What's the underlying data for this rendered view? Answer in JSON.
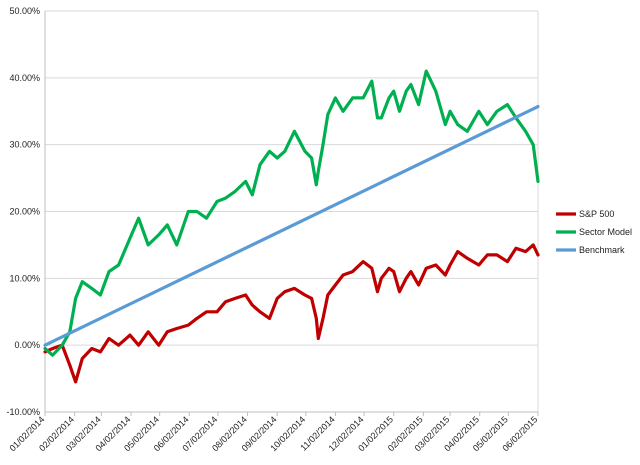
{
  "chart_data": {
    "type": "line",
    "title": "",
    "xlabel": "",
    "ylabel": "",
    "ylim": [
      -0.1,
      0.5
    ],
    "y_ticks": [
      -0.1,
      0.0,
      0.1,
      0.2,
      0.3,
      0.4,
      0.5
    ],
    "y_tick_labels": [
      "-10.00%",
      "0.00%",
      "10.00%",
      "20.00%",
      "30.00%",
      "40.00%",
      "50.00%"
    ],
    "x_tick_labels": [
      "01/02/2014",
      "02/02/2014",
      "03/02/2014",
      "04/02/2014",
      "05/02/2014",
      "06/02/2014",
      "07/02/2014",
      "08/02/2014",
      "09/02/2014",
      "10/02/2014",
      "11/02/2014",
      "12/02/2014",
      "01/02/2015",
      "02/02/2015",
      "03/02/2015",
      "04/02/2015",
      "05/02/2015",
      "06/02/2015"
    ],
    "x_ticks": [
      "2014-01-02",
      "2014-02-02",
      "2014-03-02",
      "2014-04-02",
      "2014-05-02",
      "2014-06-02",
      "2014-07-02",
      "2014-08-02",
      "2014-09-02",
      "2014-10-02",
      "2014-11-02",
      "2014-12-02",
      "2015-01-02",
      "2015-02-02",
      "2015-03-02",
      "2015-04-02",
      "2015-05-02",
      "2015-06-02"
    ],
    "xlim": [
      "2014-01-02",
      "2015-06-02"
    ],
    "grid": "horizontal",
    "legend_position": "right",
    "series": [
      {
        "name": "S&P 500",
        "color": "#c00000",
        "x": [
          "2014-01-02",
          "2014-01-10",
          "2014-01-20",
          "2014-01-28",
          "2014-02-03",
          "2014-02-10",
          "2014-02-20",
          "2014-03-01",
          "2014-03-10",
          "2014-03-20",
          "2014-04-01",
          "2014-04-10",
          "2014-04-20",
          "2014-05-01",
          "2014-05-10",
          "2014-05-20",
          "2014-06-01",
          "2014-06-10",
          "2014-06-20",
          "2014-07-01",
          "2014-07-10",
          "2014-07-20",
          "2014-07-31",
          "2014-08-07",
          "2014-08-15",
          "2014-08-25",
          "2014-09-02",
          "2014-09-10",
          "2014-09-20",
          "2014-10-01",
          "2014-10-08",
          "2014-10-13",
          "2014-10-15",
          "2014-10-20",
          "2014-10-25",
          "2014-11-02",
          "2014-11-10",
          "2014-11-20",
          "2014-12-01",
          "2014-12-10",
          "2014-12-16",
          "2014-12-20",
          "2014-12-28",
          "2015-01-02",
          "2015-01-08",
          "2015-01-15",
          "2015-01-20",
          "2015-01-28",
          "2015-02-05",
          "2015-02-15",
          "2015-02-25",
          "2015-03-02",
          "2015-03-10",
          "2015-03-20",
          "2015-04-01",
          "2015-04-10",
          "2015-04-20",
          "2015-05-01",
          "2015-05-10",
          "2015-05-20",
          "2015-05-28",
          "2015-06-02"
        ],
        "values": [
          -0.01,
          -0.005,
          0.0,
          -0.03,
          -0.055,
          -0.02,
          -0.005,
          -0.01,
          0.01,
          0.0,
          0.015,
          0.0,
          0.02,
          0.0,
          0.02,
          0.025,
          0.03,
          0.04,
          0.05,
          0.05,
          0.065,
          0.07,
          0.075,
          0.06,
          0.05,
          0.04,
          0.07,
          0.08,
          0.085,
          0.075,
          0.07,
          0.04,
          0.01,
          0.04,
          0.075,
          0.09,
          0.105,
          0.11,
          0.125,
          0.115,
          0.08,
          0.1,
          0.115,
          0.11,
          0.08,
          0.1,
          0.11,
          0.09,
          0.115,
          0.12,
          0.105,
          0.12,
          0.14,
          0.13,
          0.12,
          0.135,
          0.135,
          0.125,
          0.145,
          0.14,
          0.15,
          0.135
        ]
      },
      {
        "name": "Sector Model",
        "color": "#00b050",
        "x": [
          "2014-01-02",
          "2014-01-10",
          "2014-01-20",
          "2014-01-28",
          "2014-02-03",
          "2014-02-10",
          "2014-02-20",
          "2014-03-01",
          "2014-03-10",
          "2014-03-20",
          "2014-04-01",
          "2014-04-10",
          "2014-04-20",
          "2014-05-01",
          "2014-05-10",
          "2014-05-20",
          "2014-06-01",
          "2014-06-10",
          "2014-06-20",
          "2014-07-01",
          "2014-07-10",
          "2014-07-20",
          "2014-07-31",
          "2014-08-07",
          "2014-08-15",
          "2014-08-25",
          "2014-09-02",
          "2014-09-10",
          "2014-09-20",
          "2014-10-01",
          "2014-10-08",
          "2014-10-13",
          "2014-10-15",
          "2014-10-20",
          "2014-10-25",
          "2014-11-02",
          "2014-11-10",
          "2014-11-20",
          "2014-12-01",
          "2014-12-10",
          "2014-12-16",
          "2014-12-20",
          "2014-12-28",
          "2015-01-02",
          "2015-01-08",
          "2015-01-15",
          "2015-01-20",
          "2015-01-28",
          "2015-02-05",
          "2015-02-15",
          "2015-02-25",
          "2015-03-02",
          "2015-03-10",
          "2015-03-20",
          "2015-04-01",
          "2015-04-10",
          "2015-04-20",
          "2015-05-01",
          "2015-05-10",
          "2015-05-20",
          "2015-05-28",
          "2015-06-02"
        ],
        "values": [
          -0.005,
          -0.015,
          0.0,
          0.02,
          0.07,
          0.095,
          0.085,
          0.075,
          0.11,
          0.12,
          0.16,
          0.19,
          0.15,
          0.165,
          0.18,
          0.15,
          0.2,
          0.2,
          0.19,
          0.215,
          0.22,
          0.23,
          0.245,
          0.225,
          0.27,
          0.29,
          0.28,
          0.29,
          0.32,
          0.29,
          0.28,
          0.24,
          0.26,
          0.3,
          0.345,
          0.37,
          0.35,
          0.37,
          0.37,
          0.395,
          0.34,
          0.34,
          0.37,
          0.38,
          0.35,
          0.38,
          0.39,
          0.36,
          0.41,
          0.38,
          0.33,
          0.35,
          0.33,
          0.32,
          0.35,
          0.33,
          0.35,
          0.36,
          0.34,
          0.32,
          0.3,
          0.245
        ]
      },
      {
        "name": "Benchmark",
        "color": "#5b9bd5",
        "x": [
          "2014-01-02",
          "2015-06-02"
        ],
        "values": [
          0.0,
          0.357
        ]
      }
    ]
  }
}
